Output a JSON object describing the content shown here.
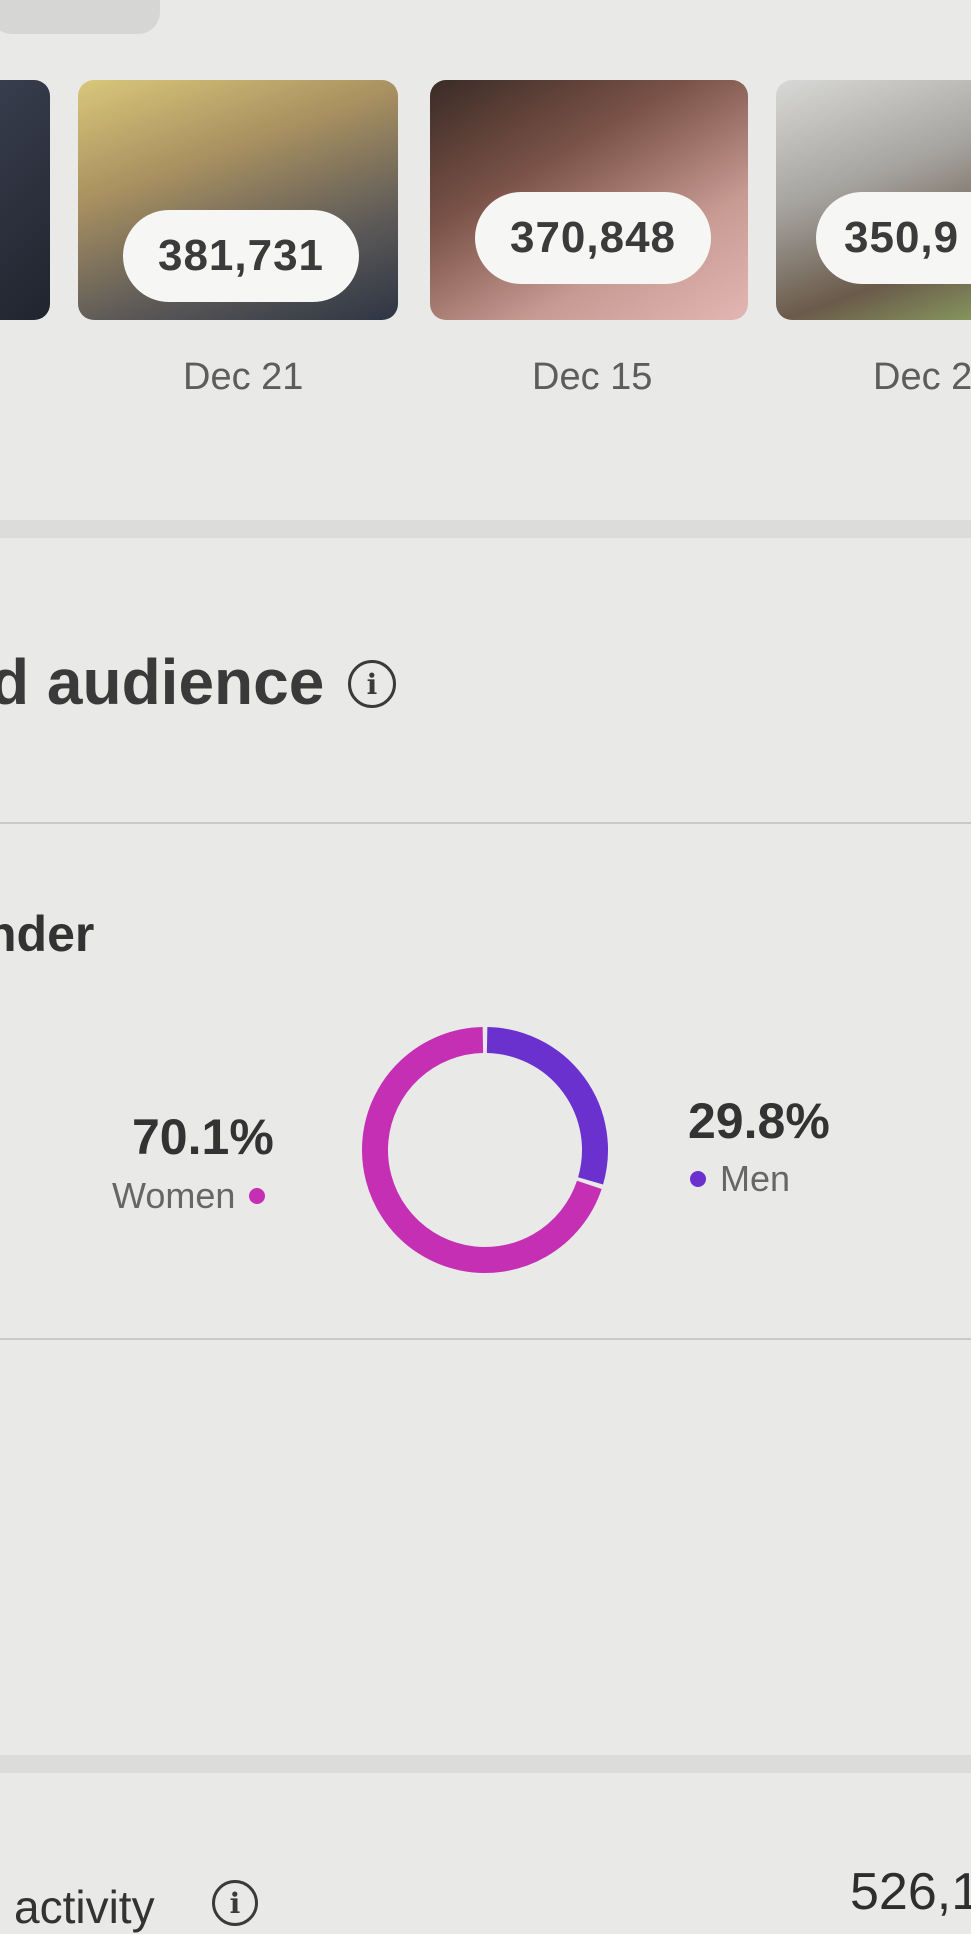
{
  "top_posts": [
    {
      "views": "",
      "date": ""
    },
    {
      "views": "381,731",
      "date": "Dec 21"
    },
    {
      "views": "370,848",
      "date": "Dec 15"
    },
    {
      "views": "350,9",
      "date": "Dec 2"
    }
  ],
  "audience": {
    "title": "d audience",
    "gender": {
      "title": "nder",
      "women": {
        "label": "Women",
        "percent": "70.1%",
        "color": "#c42fb4"
      },
      "men": {
        "label": "Men",
        "percent": "29.8%",
        "color": "#6a31cf"
      }
    }
  },
  "chart_data": {
    "type": "pie",
    "title": "",
    "series": [
      {
        "name": "Women",
        "value": 70.1
      },
      {
        "name": "Men",
        "value": 29.8
      }
    ],
    "colors": [
      "#c42fb4",
      "#6a31cf"
    ],
    "donut": true
  },
  "activity": {
    "label": "activity",
    "value": "526,1"
  }
}
